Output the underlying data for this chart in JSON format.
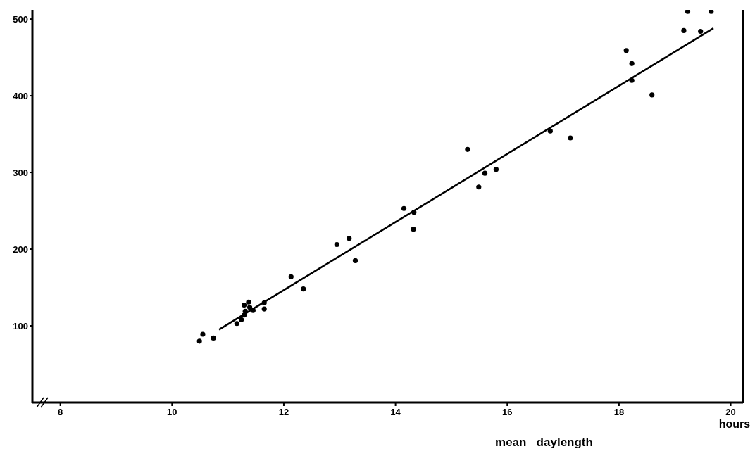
{
  "chart_data": {
    "type": "scatter",
    "xlabel": "mean   daylength",
    "annotations": [
      "hours"
    ],
    "xlim": [
      7.5,
      20.22
    ],
    "xticks": [
      8,
      10,
      12,
      14,
      16,
      18,
      20
    ],
    "ylim": [
      0,
      512
    ],
    "yticks": [
      100,
      200,
      300,
      400,
      500
    ],
    "grid": false,
    "legend": false,
    "marker": "circle",
    "series": [
      {
        "type": "scatter",
        "color": "#000000",
        "x": [
          10.49,
          10.55,
          10.74,
          11.16,
          11.24,
          11.29,
          11.31,
          11.29,
          11.37,
          11.39,
          11.45,
          11.65,
          11.65,
          12.13,
          12.35,
          12.95,
          13.17,
          13.28,
          14.15,
          14.33,
          14.32,
          15.29,
          15.49,
          15.6,
          15.8,
          16.77,
          17.13,
          18.13,
          18.23,
          18.23,
          18.59,
          19.16,
          19.46,
          19.23,
          19.65
        ],
        "values": [
          80,
          89,
          84,
          103,
          108,
          114,
          119,
          127,
          131,
          124,
          120,
          130,
          122,
          164,
          148,
          206,
          214,
          185,
          253,
          248,
          226,
          330,
          281,
          299,
          304,
          354,
          345,
          459,
          442,
          420,
          401,
          485,
          484,
          510,
          510
        ]
      },
      {
        "type": "line",
        "color": "#000000",
        "x": [
          10.84,
          19.69
        ],
        "values": [
          95,
          488
        ],
        "line_style": "solid",
        "marker": "none"
      }
    ]
  }
}
